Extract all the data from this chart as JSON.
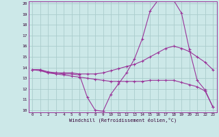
{
  "background_color": "#cce8e8",
  "grid_color": "#aacccc",
  "line_color": "#993399",
  "curve1_x": [
    0,
    1,
    2,
    3,
    4,
    5,
    6,
    7,
    8,
    9,
    10,
    11,
    12,
    13,
    14,
    15,
    16,
    17,
    18,
    19,
    20,
    21,
    22,
    23
  ],
  "curve1_y": [
    13.8,
    13.8,
    13.5,
    13.5,
    13.4,
    13.4,
    13.3,
    11.2,
    10.0,
    9.9,
    11.5,
    12.5,
    13.5,
    14.8,
    16.7,
    19.3,
    20.3,
    20.7,
    20.3,
    19.1,
    15.7,
    12.8,
    11.9,
    10.3
  ],
  "curve2_x": [
    0,
    1,
    2,
    3,
    4,
    5,
    6,
    7,
    8,
    9,
    10,
    11,
    12,
    13,
    14,
    15,
    16,
    17,
    18,
    19,
    20,
    21,
    22,
    23
  ],
  "curve2_y": [
    13.8,
    13.8,
    13.6,
    13.5,
    13.5,
    13.5,
    13.4,
    13.4,
    13.4,
    13.5,
    13.7,
    13.9,
    14.1,
    14.3,
    14.6,
    15.0,
    15.4,
    15.8,
    16.0,
    15.8,
    15.5,
    15.0,
    14.5,
    13.8
  ],
  "curve3_x": [
    0,
    1,
    2,
    3,
    4,
    5,
    6,
    7,
    8,
    9,
    10,
    11,
    12,
    13,
    14,
    15,
    16,
    17,
    18,
    19,
    20,
    21,
    22,
    23
  ],
  "curve3_y": [
    13.8,
    13.7,
    13.5,
    13.4,
    13.3,
    13.2,
    13.1,
    13.0,
    12.9,
    12.8,
    12.7,
    12.7,
    12.7,
    12.7,
    12.7,
    12.8,
    12.8,
    12.8,
    12.8,
    12.6,
    12.4,
    12.2,
    11.8,
    10.3
  ],
  "xlabel": "Windchill (Refroidissement éolien,°C)",
  "xlim": [
    -0.5,
    23.5
  ],
  "ylim": [
    9.8,
    20.2
  ],
  "yticks": [
    10,
    11,
    12,
    13,
    14,
    15,
    16,
    17,
    18,
    19,
    20
  ],
  "xticks": [
    0,
    1,
    2,
    3,
    4,
    5,
    6,
    7,
    8,
    9,
    10,
    11,
    12,
    13,
    14,
    15,
    16,
    17,
    18,
    19,
    20,
    21,
    22,
    23
  ]
}
